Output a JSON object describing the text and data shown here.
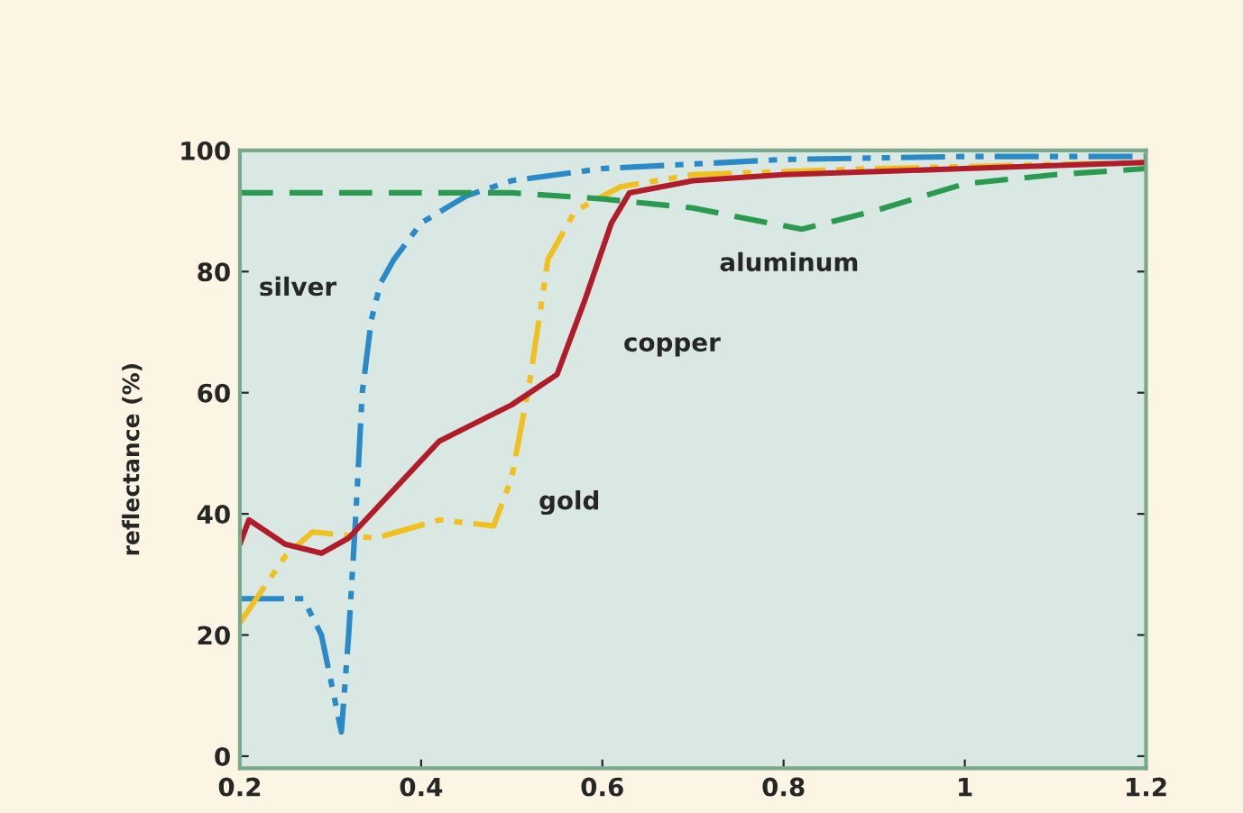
{
  "chart_data": {
    "type": "line",
    "ylabel": "reflectance (%)",
    "xlim": [
      0.2,
      1.2
    ],
    "xticks": [
      0.2,
      0.4,
      0.6,
      0.8,
      {
        "value": 1.0,
        "label": "1"
      },
      1.2
    ],
    "ylim": [
      -2,
      100
    ],
    "yticks": [
      0,
      20,
      40,
      60,
      80,
      100
    ],
    "grid": false,
    "legend": false,
    "marker": "none",
    "series": [
      {
        "name": "silver",
        "color": "#2a8ac8",
        "line_style": "dashdot",
        "x": [
          0.2,
          0.27,
          0.29,
          0.312,
          0.32,
          0.328,
          0.335,
          0.345,
          0.355,
          0.37,
          0.4,
          0.45,
          0.5,
          0.6,
          0.8,
          1.0,
          1.2
        ],
        "values": [
          26,
          26,
          20,
          4,
          20,
          40,
          60,
          72,
          78,
          82,
          88,
          92.5,
          95,
          97,
          98.5,
          99,
          99
        ]
      },
      {
        "name": "gold",
        "color": "#f0c020",
        "line_style": "dashdot",
        "x": [
          0.2,
          0.25,
          0.28,
          0.35,
          0.42,
          0.48,
          0.5,
          0.52,
          0.54,
          0.57,
          0.62,
          0.7,
          0.9,
          1.2
        ],
        "values": [
          22,
          33,
          37,
          36,
          39,
          38,
          46,
          62,
          82,
          90,
          94,
          96,
          97,
          98
        ]
      },
      {
        "name": "copper",
        "color": "#b01c2a",
        "line_style": "solid",
        "x": [
          0.2,
          0.21,
          0.25,
          0.29,
          0.32,
          0.42,
          0.5,
          0.55,
          0.58,
          0.61,
          0.63,
          0.7,
          0.8,
          1.0,
          1.2
        ],
        "values": [
          35,
          39,
          35,
          33.5,
          36,
          52,
          58,
          63,
          75,
          88,
          93,
          95,
          96,
          97,
          98
        ]
      },
      {
        "name": "aluminum",
        "color": "#2a9a50",
        "line_style": "dashed",
        "x": [
          0.2,
          0.5,
          0.6,
          0.7,
          0.75,
          0.82,
          0.9,
          1.0,
          1.1,
          1.2
        ],
        "values": [
          93,
          93,
          92,
          90.5,
          89,
          87,
          90,
          94.5,
          96,
          97
        ]
      }
    ]
  }
}
